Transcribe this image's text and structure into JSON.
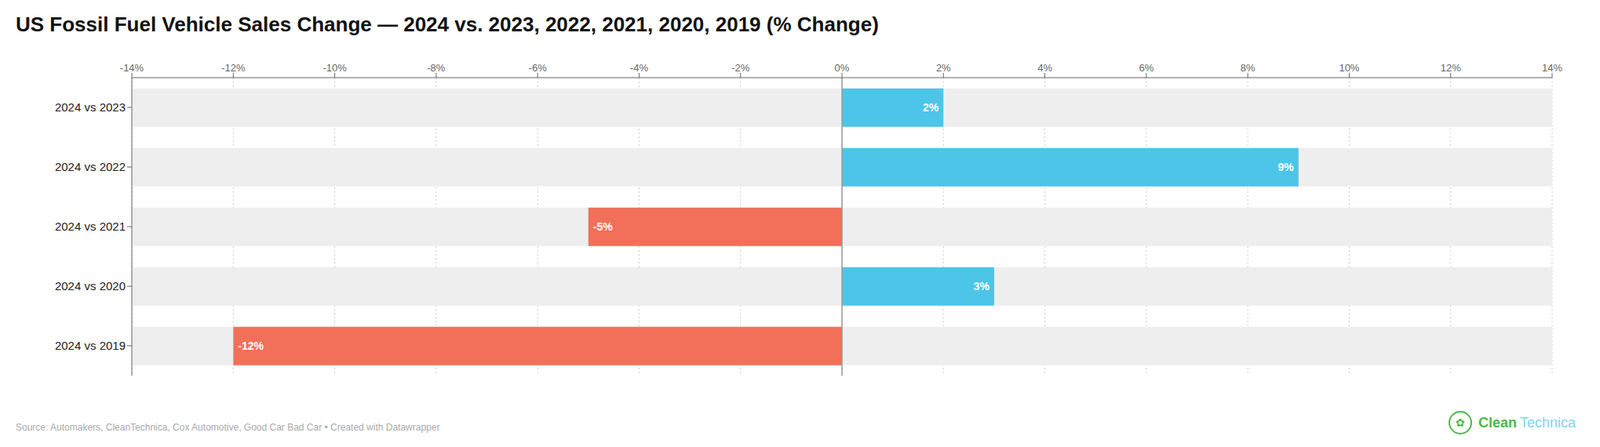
{
  "chart_data": {
    "type": "bar",
    "orientation": "horizontal",
    "title": "US Fossil Fuel Vehicle Sales Change — 2024 vs. 2023, 2022, 2021, 2020, 2019 (% Change)",
    "categories": [
      "2024 vs 2023",
      "2024 vs 2022",
      "2024 vs 2021",
      "2024 vs 2020",
      "2024 vs 2019"
    ],
    "values": [
      2,
      9,
      -5,
      3,
      -12
    ],
    "value_labels": [
      "2%",
      "9%",
      "-5%",
      "3%",
      "-12%"
    ],
    "data_labels": true,
    "colors": [
      "#4DC5E8",
      "#4DC5E8",
      "#F2705A",
      "#4DC5E8",
      "#F2705A"
    ],
    "xlim": [
      -14,
      14
    ],
    "xticks": [
      {
        "value": -14,
        "label": "-14%"
      },
      {
        "value": -12,
        "label": "-12%"
      },
      {
        "value": -10,
        "label": "-10%"
      },
      {
        "value": -8,
        "label": "-8%"
      },
      {
        "value": -6,
        "label": "-6%"
      },
      {
        "value": -4,
        "label": "-4%"
      },
      {
        "value": -2,
        "label": "-2%"
      },
      {
        "value": 0,
        "label": "0%"
      },
      {
        "value": 2,
        "label": "2%"
      },
      {
        "value": 4,
        "label": "4%"
      },
      {
        "value": 6,
        "label": "6%"
      },
      {
        "value": 8,
        "label": "8%"
      },
      {
        "value": 10,
        "label": "10%"
      },
      {
        "value": 12,
        "label": "12%"
      },
      {
        "value": 14,
        "label": "14%"
      }
    ],
    "grid": true,
    "annotations": [
      {
        "text": "Source: Automakers, CleanTechnica, Cox Automotive, Good Car Bad Car • Created with Datawrapper"
      },
      {
        "text": "✿",
        "color": "#4db848"
      },
      {
        "text": "Clean",
        "color": "#4db848"
      },
      {
        "text": "Technica",
        "color": "#7dd6f0"
      }
    ]
  }
}
